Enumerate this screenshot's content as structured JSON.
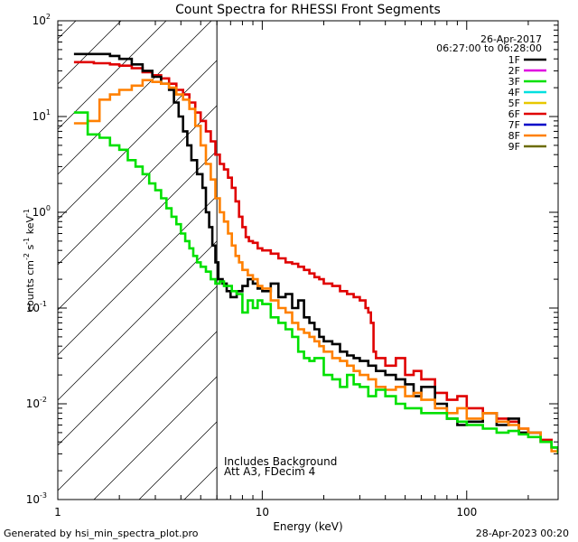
{
  "chart_data": {
    "type": "line",
    "title": "Count Spectra for RHESSI Front Segments",
    "xlabel": "Energy (keV)",
    "ylabel_main": "counts cm",
    "ylabel_exp1": "-2",
    "ylabel_mid1": " s",
    "ylabel_exp2": "-1",
    "ylabel_mid2": " keV",
    "ylabel_exp3": "-1",
    "xscale": "log",
    "yscale": "log",
    "xlim": [
      1,
      280
    ],
    "ylim": [
      0.001,
      100
    ],
    "x_ticks": [
      {
        "value": 1,
        "label": "1"
      },
      {
        "value": 10,
        "label": "10"
      },
      {
        "value": 100,
        "label": "100"
      }
    ],
    "y_ticks": [
      {
        "value": 100,
        "base": "10",
        "exp": "2"
      },
      {
        "value": 10,
        "base": "10",
        "exp": "1"
      },
      {
        "value": 1,
        "base": "10",
        "exp": "0"
      },
      {
        "value": 0.1,
        "base": "10",
        "exp": "-1"
      },
      {
        "value": 0.01,
        "base": "10",
        "exp": "-2"
      },
      {
        "value": 0.001,
        "base": "10",
        "exp": "-3"
      }
    ],
    "date": "26-Apr-2017",
    "time_range": "06:27:00 to 06:28:00",
    "notes": [
      "Includes Background",
      "Att A3, FDecim  4"
    ],
    "hatch_boundary_kev": 6,
    "legend": [
      {
        "name": "1F",
        "color": "#000000"
      },
      {
        "name": "2F",
        "color": "#e000e0"
      },
      {
        "name": "3F",
        "color": "#00e000"
      },
      {
        "name": "4F",
        "color": "#00e0e0"
      },
      {
        "name": "5F",
        "color": "#e8c800"
      },
      {
        "name": "6F",
        "color": "#e00000"
      },
      {
        "name": "7F",
        "color": "#0000c8"
      },
      {
        "name": "8F",
        "color": "#ff8000"
      },
      {
        "name": "9F",
        "color": "#6b6b00"
      }
    ],
    "series": [
      {
        "name": "6F",
        "color": "#e00000",
        "points": [
          [
            1.2,
            37
          ],
          [
            1.5,
            36
          ],
          [
            1.8,
            35
          ],
          [
            2.0,
            34
          ],
          [
            2.3,
            32
          ],
          [
            2.6,
            29
          ],
          [
            2.9,
            27
          ],
          [
            3.2,
            25
          ],
          [
            3.5,
            22
          ],
          [
            3.8,
            19
          ],
          [
            4.1,
            17
          ],
          [
            4.4,
            14
          ],
          [
            4.7,
            11
          ],
          [
            5.0,
            9
          ],
          [
            5.3,
            7
          ],
          [
            5.6,
            5.5
          ],
          [
            5.9,
            4
          ],
          [
            6.2,
            3.2
          ],
          [
            6.5,
            2.8
          ],
          [
            6.8,
            2.3
          ],
          [
            7.1,
            1.8
          ],
          [
            7.4,
            1.3
          ],
          [
            7.7,
            0.9
          ],
          [
            8.0,
            0.7
          ],
          [
            8.3,
            0.55
          ],
          [
            8.6,
            0.5
          ],
          [
            9.0,
            0.48
          ],
          [
            9.5,
            0.42
          ],
          [
            10,
            0.4
          ],
          [
            11,
            0.37
          ],
          [
            12,
            0.33
          ],
          [
            13,
            0.3
          ],
          [
            14,
            0.29
          ],
          [
            15,
            0.27
          ],
          [
            16,
            0.25
          ],
          [
            17,
            0.23
          ],
          [
            18,
            0.21
          ],
          [
            19,
            0.2
          ],
          [
            20,
            0.18
          ],
          [
            22,
            0.17
          ],
          [
            24,
            0.15
          ],
          [
            26,
            0.14
          ],
          [
            28,
            0.13
          ],
          [
            30,
            0.12
          ],
          [
            32,
            0.1
          ],
          [
            33,
            0.09
          ],
          [
            34,
            0.07
          ],
          [
            35,
            0.035
          ],
          [
            36,
            0.03
          ],
          [
            40,
            0.025
          ],
          [
            45,
            0.03
          ],
          [
            50,
            0.02
          ],
          [
            55,
            0.022
          ],
          [
            60,
            0.018
          ],
          [
            70,
            0.013
          ],
          [
            80,
            0.011
          ],
          [
            90,
            0.012
          ],
          [
            100,
            0.009
          ],
          [
            120,
            0.008
          ],
          [
            140,
            0.007
          ],
          [
            160,
            0.0065
          ],
          [
            180,
            0.0055
          ],
          [
            200,
            0.005
          ],
          [
            230,
            0.0042
          ],
          [
            260,
            0.0035
          ],
          [
            280,
            0.003
          ]
        ]
      },
      {
        "name": "1F",
        "color": "#000000",
        "points": [
          [
            1.2,
            45
          ],
          [
            1.5,
            45
          ],
          [
            1.8,
            43
          ],
          [
            2.0,
            40
          ],
          [
            2.3,
            35
          ],
          [
            2.6,
            30
          ],
          [
            2.9,
            26
          ],
          [
            3.2,
            22
          ],
          [
            3.5,
            19
          ],
          [
            3.7,
            14
          ],
          [
            3.9,
            10
          ],
          [
            4.1,
            7
          ],
          [
            4.3,
            5
          ],
          [
            4.5,
            3.5
          ],
          [
            4.8,
            2.5
          ],
          [
            5.1,
            1.8
          ],
          [
            5.3,
            1.0
          ],
          [
            5.5,
            0.7
          ],
          [
            5.7,
            0.45
          ],
          [
            5.9,
            0.3
          ],
          [
            6.1,
            0.2
          ],
          [
            6.4,
            0.18
          ],
          [
            6.7,
            0.15
          ],
          [
            7.0,
            0.13
          ],
          [
            7.5,
            0.15
          ],
          [
            8.0,
            0.17
          ],
          [
            8.5,
            0.2
          ],
          [
            9.0,
            0.18
          ],
          [
            9.5,
            0.16
          ],
          [
            10,
            0.15
          ],
          [
            11,
            0.18
          ],
          [
            12,
            0.13
          ],
          [
            13,
            0.14
          ],
          [
            14,
            0.1
          ],
          [
            15,
            0.12
          ],
          [
            16,
            0.08
          ],
          [
            17,
            0.07
          ],
          [
            18,
            0.06
          ],
          [
            19,
            0.05
          ],
          [
            20,
            0.045
          ],
          [
            22,
            0.042
          ],
          [
            24,
            0.035
          ],
          [
            26,
            0.032
          ],
          [
            28,
            0.03
          ],
          [
            30,
            0.028
          ],
          [
            33,
            0.025
          ],
          [
            36,
            0.022
          ],
          [
            40,
            0.02
          ],
          [
            45,
            0.018
          ],
          [
            50,
            0.016
          ],
          [
            55,
            0.012
          ],
          [
            60,
            0.015
          ],
          [
            70,
            0.01
          ],
          [
            80,
            0.007
          ],
          [
            90,
            0.006
          ],
          [
            100,
            0.0065
          ],
          [
            120,
            0.008
          ],
          [
            140,
            0.006
          ],
          [
            160,
            0.007
          ],
          [
            180,
            0.005
          ],
          [
            200,
            0.005
          ],
          [
            230,
            0.004
          ],
          [
            260,
            0.0035
          ],
          [
            280,
            0.003
          ]
        ]
      },
      {
        "name": "8F",
        "color": "#ff8000",
        "points": [
          [
            1.2,
            8.5
          ],
          [
            1.4,
            9
          ],
          [
            1.6,
            15
          ],
          [
            1.8,
            17
          ],
          [
            2.0,
            19
          ],
          [
            2.3,
            21
          ],
          [
            2.6,
            24
          ],
          [
            2.9,
            23
          ],
          [
            3.2,
            22
          ],
          [
            3.5,
            20
          ],
          [
            3.8,
            17
          ],
          [
            4.1,
            15
          ],
          [
            4.4,
            12
          ],
          [
            4.7,
            8
          ],
          [
            5.0,
            5
          ],
          [
            5.3,
            3.2
          ],
          [
            5.6,
            2.2
          ],
          [
            5.9,
            1.4
          ],
          [
            6.2,
            1.0
          ],
          [
            6.5,
            0.8
          ],
          [
            6.8,
            0.6
          ],
          [
            7.1,
            0.45
          ],
          [
            7.4,
            0.35
          ],
          [
            7.7,
            0.3
          ],
          [
            8.0,
            0.25
          ],
          [
            8.5,
            0.22
          ],
          [
            9.0,
            0.2
          ],
          [
            9.5,
            0.17
          ],
          [
            10,
            0.16
          ],
          [
            11,
            0.12
          ],
          [
            12,
            0.1
          ],
          [
            13,
            0.09
          ],
          [
            14,
            0.07
          ],
          [
            15,
            0.06
          ],
          [
            16,
            0.055
          ],
          [
            17,
            0.05
          ],
          [
            18,
            0.045
          ],
          [
            19,
            0.04
          ],
          [
            20,
            0.035
          ],
          [
            22,
            0.03
          ],
          [
            24,
            0.028
          ],
          [
            26,
            0.025
          ],
          [
            28,
            0.022
          ],
          [
            30,
            0.02
          ],
          [
            33,
            0.018
          ],
          [
            36,
            0.015
          ],
          [
            40,
            0.014
          ],
          [
            45,
            0.015
          ],
          [
            50,
            0.012
          ],
          [
            55,
            0.013
          ],
          [
            60,
            0.011
          ],
          [
            70,
            0.009
          ],
          [
            80,
            0.008
          ],
          [
            90,
            0.009
          ],
          [
            100,
            0.007
          ],
          [
            120,
            0.008
          ],
          [
            140,
            0.0065
          ],
          [
            160,
            0.006
          ],
          [
            180,
            0.0055
          ],
          [
            200,
            0.005
          ],
          [
            230,
            0.004
          ],
          [
            260,
            0.0032
          ],
          [
            280,
            0.003
          ]
        ]
      },
      {
        "name": "3F",
        "color": "#00e000",
        "points": [
          [
            1.2,
            11
          ],
          [
            1.3,
            11
          ],
          [
            1.4,
            6.5
          ],
          [
            1.6,
            6
          ],
          [
            1.8,
            5
          ],
          [
            2.0,
            4.5
          ],
          [
            2.2,
            3.5
          ],
          [
            2.4,
            3
          ],
          [
            2.6,
            2.5
          ],
          [
            2.8,
            2
          ],
          [
            3.0,
            1.7
          ],
          [
            3.2,
            1.4
          ],
          [
            3.4,
            1.1
          ],
          [
            3.6,
            0.9
          ],
          [
            3.8,
            0.75
          ],
          [
            4.0,
            0.6
          ],
          [
            4.2,
            0.5
          ],
          [
            4.4,
            0.42
          ],
          [
            4.6,
            0.35
          ],
          [
            4.8,
            0.3
          ],
          [
            5.0,
            0.27
          ],
          [
            5.3,
            0.24
          ],
          [
            5.6,
            0.2
          ],
          [
            5.9,
            0.18
          ],
          [
            6.2,
            0.19
          ],
          [
            6.5,
            0.17
          ],
          [
            6.8,
            0.17
          ],
          [
            7.1,
            0.15
          ],
          [
            7.5,
            0.14
          ],
          [
            8.0,
            0.09
          ],
          [
            8.5,
            0.12
          ],
          [
            9.0,
            0.1
          ],
          [
            9.5,
            0.12
          ],
          [
            10,
            0.11
          ],
          [
            11,
            0.08
          ],
          [
            12,
            0.07
          ],
          [
            13,
            0.06
          ],
          [
            14,
            0.05
          ],
          [
            15,
            0.035
          ],
          [
            16,
            0.03
          ],
          [
            17,
            0.028
          ],
          [
            18,
            0.03
          ],
          [
            20,
            0.02
          ],
          [
            22,
            0.018
          ],
          [
            24,
            0.015
          ],
          [
            26,
            0.02
          ],
          [
            28,
            0.016
          ],
          [
            30,
            0.015
          ],
          [
            33,
            0.012
          ],
          [
            36,
            0.014
          ],
          [
            40,
            0.012
          ],
          [
            45,
            0.01
          ],
          [
            50,
            0.009
          ],
          [
            60,
            0.008
          ],
          [
            70,
            0.008
          ],
          [
            80,
            0.007
          ],
          [
            90,
            0.0065
          ],
          [
            100,
            0.006
          ],
          [
            120,
            0.0055
          ],
          [
            140,
            0.005
          ],
          [
            160,
            0.0052
          ],
          [
            180,
            0.0048
          ],
          [
            200,
            0.0045
          ],
          [
            230,
            0.004
          ],
          [
            260,
            0.0035
          ],
          [
            280,
            0.003
          ]
        ]
      }
    ]
  },
  "footer": {
    "generated_by": "Generated by hsi_min_spectra_plot.pro",
    "timestamp": "28-Apr-2023 00:20"
  }
}
